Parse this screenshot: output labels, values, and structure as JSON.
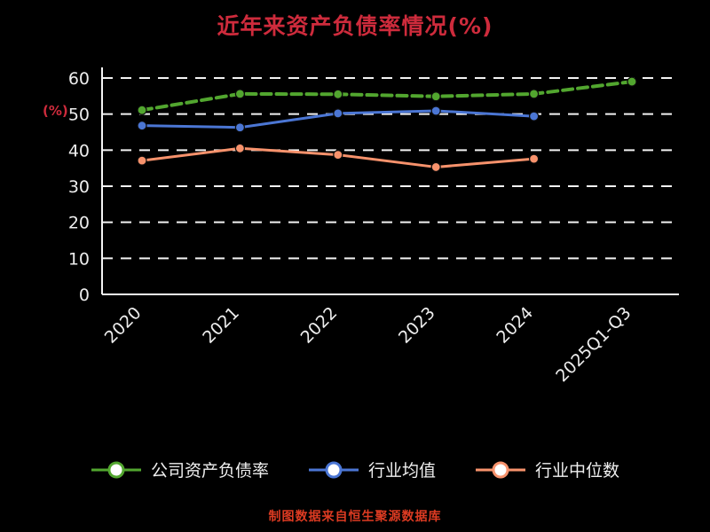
{
  "title": "近年来资产负债率情况(%)",
  "y_axis_unit": "(%)",
  "footer": "制图数据来自恒生聚源数据库",
  "colors": {
    "background": "#000000",
    "title": "#ce2b3c",
    "footer": "#dd3b22",
    "axis_text": "#ededed",
    "grid_line": "#ffffff",
    "axis_line": "#f5f5f5",
    "legend_text": "#f0f0f0"
  },
  "chart_data": {
    "type": "line",
    "title": "近年来资产负债率情况(%)",
    "ylabel": "(%)",
    "categories": [
      "2020",
      "2021",
      "2022",
      "2023",
      "2024",
      "2025Q1-Q3"
    ],
    "series": [
      {
        "name": "公司资产负债率",
        "color": "#52a62f",
        "dashed": true,
        "width": 4,
        "values": [
          51.1,
          55.6,
          55.5,
          54.9,
          55.6,
          59.0
        ]
      },
      {
        "name": "行业均值",
        "color": "#4b76d4",
        "dashed": false,
        "width": 3,
        "values": [
          46.8,
          46.3,
          50.2,
          50.9,
          49.4,
          null
        ]
      },
      {
        "name": "行业中位数",
        "color": "#f7926c",
        "dashed": false,
        "width": 3,
        "values": [
          37.1,
          40.5,
          38.7,
          35.3,
          37.6,
          null
        ]
      }
    ],
    "ylim": [
      0,
      60
    ],
    "yticks": [
      0,
      10,
      20,
      30,
      40,
      50,
      60
    ],
    "grid": true,
    "grid_style": "dashed",
    "legend_position": "bottom"
  }
}
